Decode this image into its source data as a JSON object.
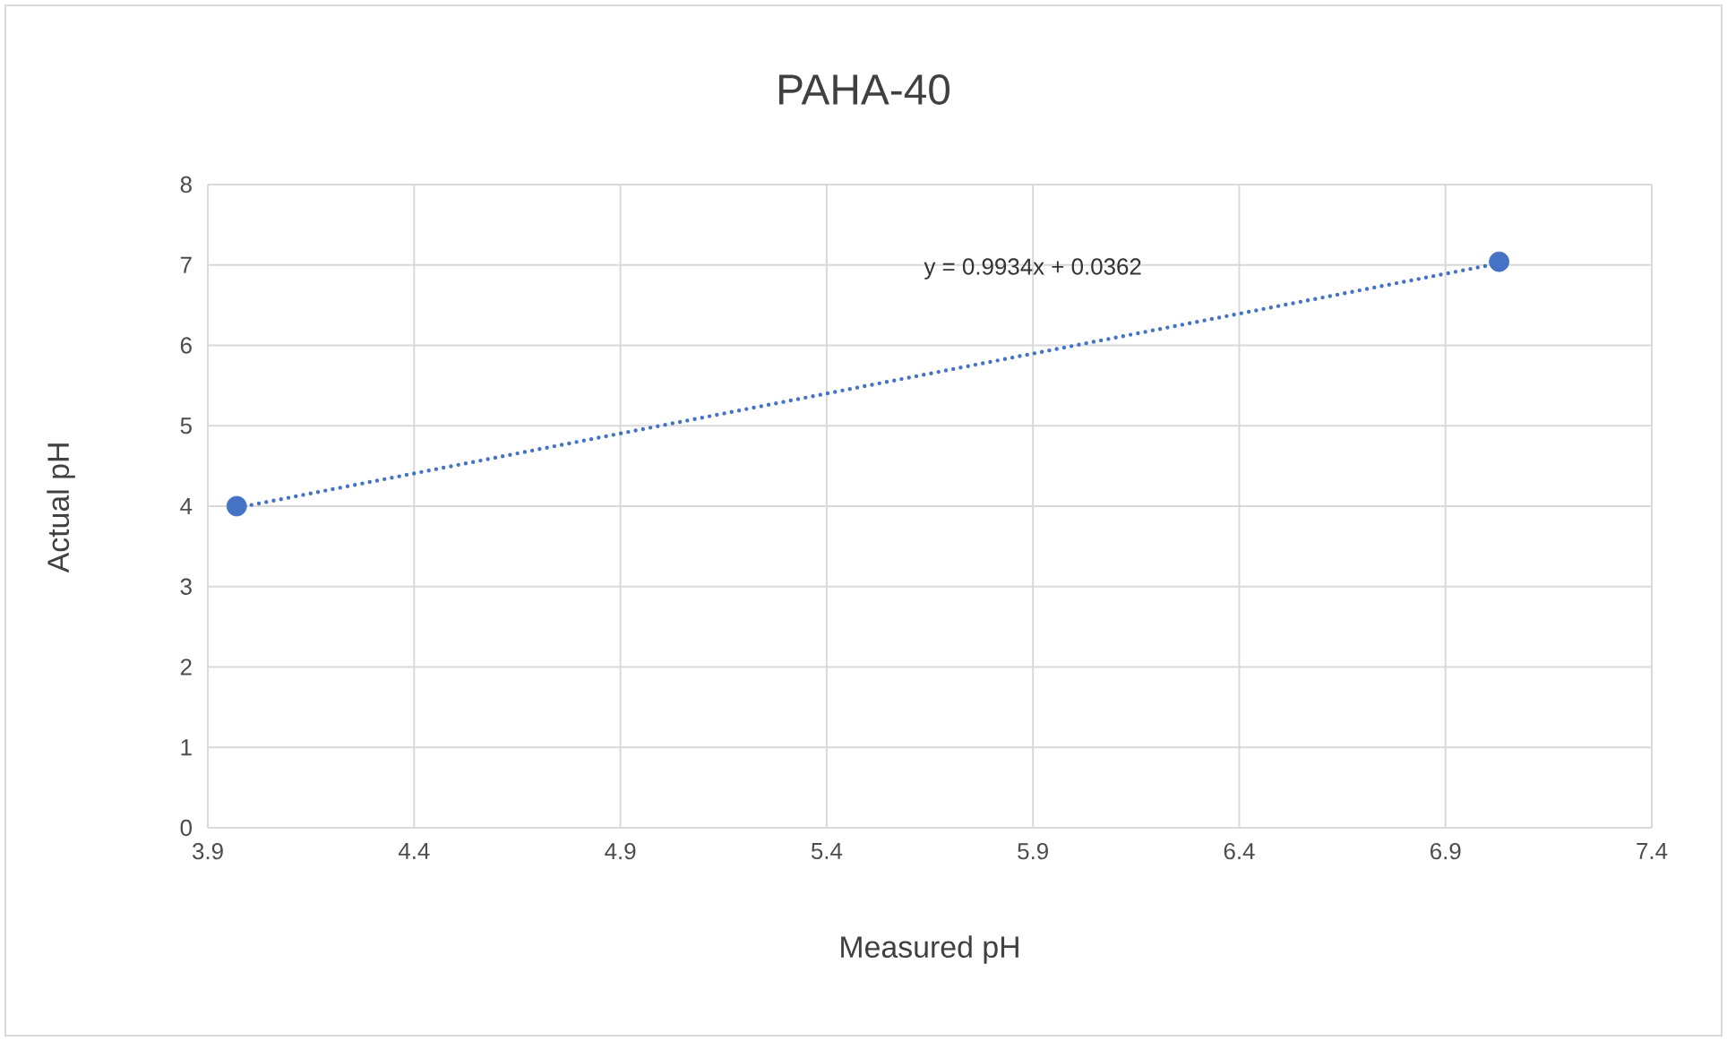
{
  "chart_data": {
    "type": "scatter",
    "title": "PAHA-40",
    "xlabel": "Measured pH",
    "ylabel": "Actual pH",
    "x": [
      3.97,
      7.03
    ],
    "series": [
      {
        "color": "#4472c4",
        "values": [
          4.0,
          7.04
        ]
      },
      {
        "type": "line",
        "color": "#4472c4",
        "line_style": "dotted",
        "values": [
          3.98,
          7.02
        ]
      }
    ],
    "annotations": [
      "y = 0.9934x + 0.0362"
    ],
    "xlim": [
      3.9,
      7.4
    ],
    "xticks": [
      3.9,
      4.4,
      4.9,
      5.4,
      5.9,
      6.4,
      6.9,
      7.4
    ],
    "ylim": [
      0,
      8
    ],
    "yticks": [
      0,
      1,
      2,
      3,
      4,
      5,
      6,
      7,
      8
    ],
    "grid": true
  }
}
